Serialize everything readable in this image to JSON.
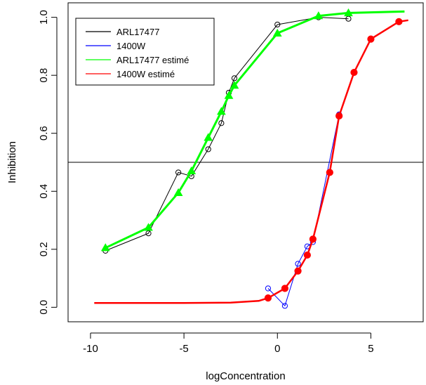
{
  "chart_data": {
    "type": "line",
    "title": "",
    "xlabel": "logConcentration",
    "ylabel": "Inhibition",
    "xlim": [
      -11.2,
      7.8
    ],
    "ylim": [
      -0.05,
      1.05
    ],
    "xticks": [
      -10,
      -5,
      0,
      5
    ],
    "yticks": [
      0.0,
      0.2,
      0.4,
      0.6,
      0.8,
      1.0
    ],
    "xtick_labels": [
      "-10",
      "-5",
      "0",
      "5"
    ],
    "ytick_labels": [
      "0.0",
      "0.2",
      "0.4",
      "0.6",
      "0.8",
      "1.0"
    ],
    "hline": 0.5,
    "legend_position": "top-left",
    "series": [
      {
        "name": "ARL17477",
        "color": "#000000",
        "marker": "open-circle",
        "x": [
          -9.2,
          -6.9,
          -5.3,
          -4.6,
          -3.7,
          -3.0,
          -2.6,
          -2.3,
          0.0,
          2.2,
          3.8
        ],
        "y": [
          0.195,
          0.255,
          0.465,
          0.452,
          0.545,
          0.635,
          0.74,
          0.79,
          0.975,
          1.0,
          0.995
        ]
      },
      {
        "name": "1400W",
        "color": "#0000ff",
        "marker": "open-circle",
        "x": [
          -0.5,
          0.4,
          1.1,
          1.6,
          1.9,
          3.3
        ],
        "y": [
          0.065,
          0.005,
          0.15,
          0.21,
          0.225,
          0.665
        ]
      },
      {
        "name": "ARL17477 estimé",
        "color": "#00ff00",
        "marker": "filled-triangle",
        "x": [
          -9.2,
          -6.9,
          -5.3,
          -4.6,
          -3.7,
          -3.0,
          -2.6,
          -2.3,
          0.0,
          2.2,
          3.8,
          6.8
        ],
        "y": [
          0.205,
          0.275,
          0.395,
          0.47,
          0.585,
          0.675,
          0.73,
          0.765,
          0.945,
          1.005,
          1.015,
          1.02
        ]
      },
      {
        "name": "1400W estimé",
        "color": "#ff0000",
        "marker": "filled-circle",
        "x": [
          -9.8,
          -5.0,
          -2.5,
          -1.0,
          -0.5,
          0.4,
          1.1,
          1.6,
          1.9,
          2.8,
          3.3,
          4.1,
          5.0,
          6.5,
          7.0
        ],
        "y": [
          0.015,
          0.015,
          0.016,
          0.022,
          0.032,
          0.065,
          0.125,
          0.18,
          0.235,
          0.465,
          0.66,
          0.81,
          0.925,
          0.985,
          0.99
        ],
        "marker_indices": [
          4,
          5,
          6,
          7,
          8,
          9,
          10,
          11,
          12,
          13
        ]
      }
    ]
  }
}
